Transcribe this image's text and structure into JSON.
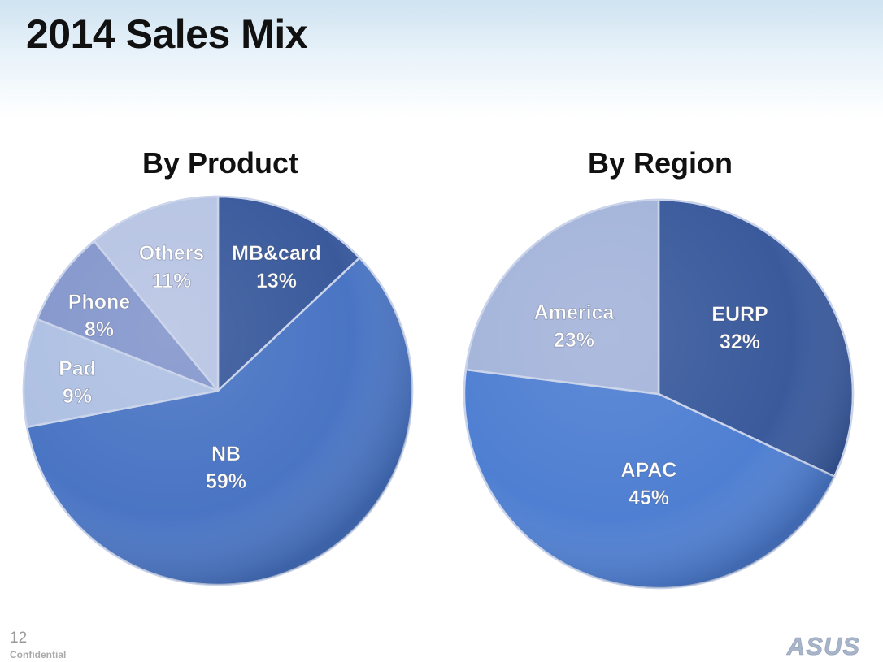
{
  "slide": {
    "title": "2014 Sales Mix",
    "page_number": "12",
    "confidential": "Confidential",
    "logo_text": "ASUS"
  },
  "colors": {
    "dark_blue": "#3a5a9c",
    "mid_blue": "#4a75c4",
    "light_blue": "#9db2de",
    "lavender": "#8496cc",
    "pale_blue": "#b7c4e3",
    "logo_gray": "#a7b4c9"
  },
  "chart_data": [
    {
      "type": "pie",
      "title": "By Product",
      "slices": [
        {
          "label": "MB&card",
          "value": 13,
          "display": "13%",
          "color": "#3a5a9c"
        },
        {
          "label": "NB",
          "value": 59,
          "display": "59%",
          "color": "#4a75c4"
        },
        {
          "label": "Pad",
          "value": 9,
          "display": "9%",
          "color": "#aec0e3"
        },
        {
          "label": "Phone",
          "value": 8,
          "display": "8%",
          "color": "#8496cc"
        },
        {
          "label": "Others",
          "value": 11,
          "display": "11%",
          "color": "#b7c4e3"
        }
      ]
    },
    {
      "type": "pie",
      "title": "By Region",
      "slices": [
        {
          "label": "EURP",
          "value": 32,
          "display": "32%",
          "color": "#3a5a9c"
        },
        {
          "label": "APAC",
          "value": 45,
          "display": "45%",
          "color": "#4f7fd2"
        },
        {
          "label": "America",
          "value": 23,
          "display": "23%",
          "color": "#a4b4da"
        }
      ]
    }
  ]
}
